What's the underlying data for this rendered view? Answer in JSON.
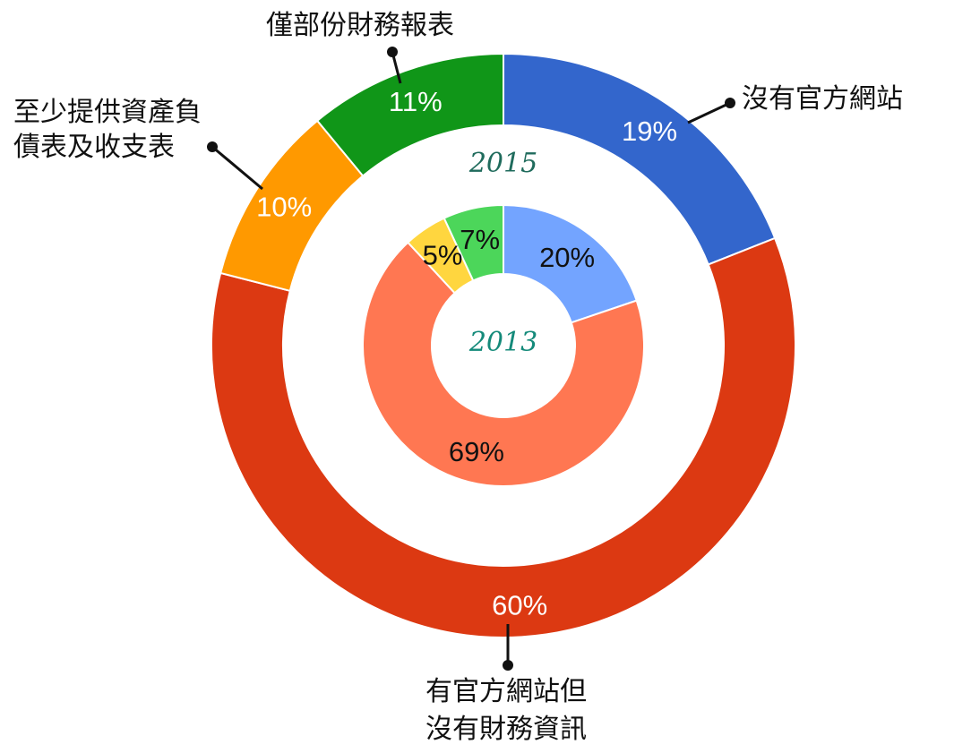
{
  "chart_data": [
    {
      "type": "pie",
      "ring": "outer",
      "center_label": "2015",
      "center_label_color": "#1f6b5c",
      "categories": [
        "沒有官方網站",
        "有官方網站但沒有財務資訊",
        "至少提供資產負債表及收支表",
        "僅部份財務報表"
      ],
      "values": [
        19,
        60,
        10,
        11
      ],
      "value_labels": [
        "19%",
        "60%",
        "10%",
        "11%"
      ],
      "colors": [
        "#3366cc",
        "#dc3912",
        "#ff9900",
        "#109618"
      ]
    },
    {
      "type": "pie",
      "ring": "inner",
      "center_label": "2013",
      "center_label_color": "#148a7a",
      "categories": [
        "沒有官方網站",
        "有官方網站但沒有財務資訊",
        "至少提供資產負債表及收支表",
        "僅部份財務報表"
      ],
      "values": [
        20,
        69,
        5,
        7
      ],
      "value_labels": [
        "20%",
        "69%",
        "5%",
        "7%"
      ],
      "colors": [
        "#73a4ff",
        "#ff7752",
        "#ffd63f",
        "#4cd65a"
      ]
    }
  ],
  "labels": {
    "no_site": [
      "沒有官方網站"
    ],
    "site_no_info": [
      "有官方網站但",
      "沒有財務資訊"
    ],
    "balance_sheet": [
      "至少提供資產負",
      "債表及收支表"
    ],
    "partial": [
      "僅部份財務報表"
    ]
  }
}
